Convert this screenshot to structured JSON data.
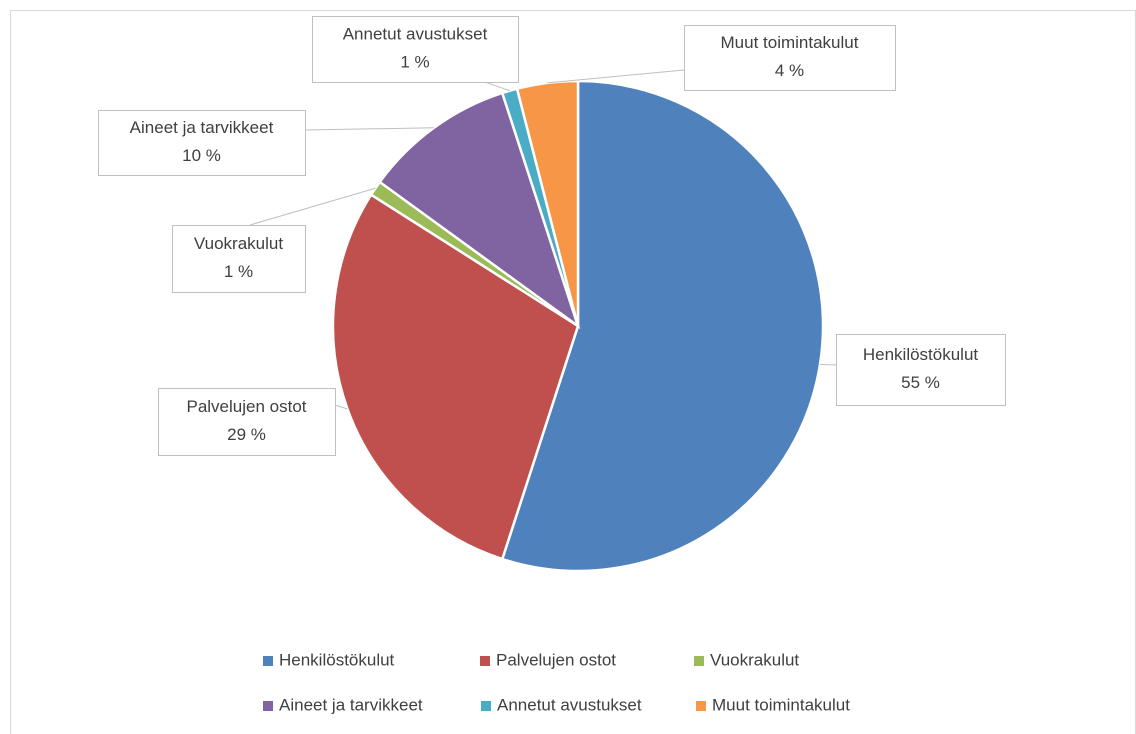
{
  "chart_data": {
    "type": "pie",
    "categories": [
      "Henkilöstökulut",
      "Palvelujen ostot",
      "Vuokrakulut",
      "Aineet ja tarvikkeet",
      "Annetut avustukset",
      "Muut toimintakulut"
    ],
    "values": [
      55,
      29,
      1,
      10,
      1,
      4
    ],
    "value_labels": [
      "55 %",
      "29 %",
      "1 %",
      "10 %",
      "1 %",
      "4 %"
    ],
    "colors": [
      "#4f81bd",
      "#c0504d",
      "#9bbb59",
      "#8064a2",
      "#4bacc6",
      "#f79646"
    ],
    "legend": "bottom"
  }
}
